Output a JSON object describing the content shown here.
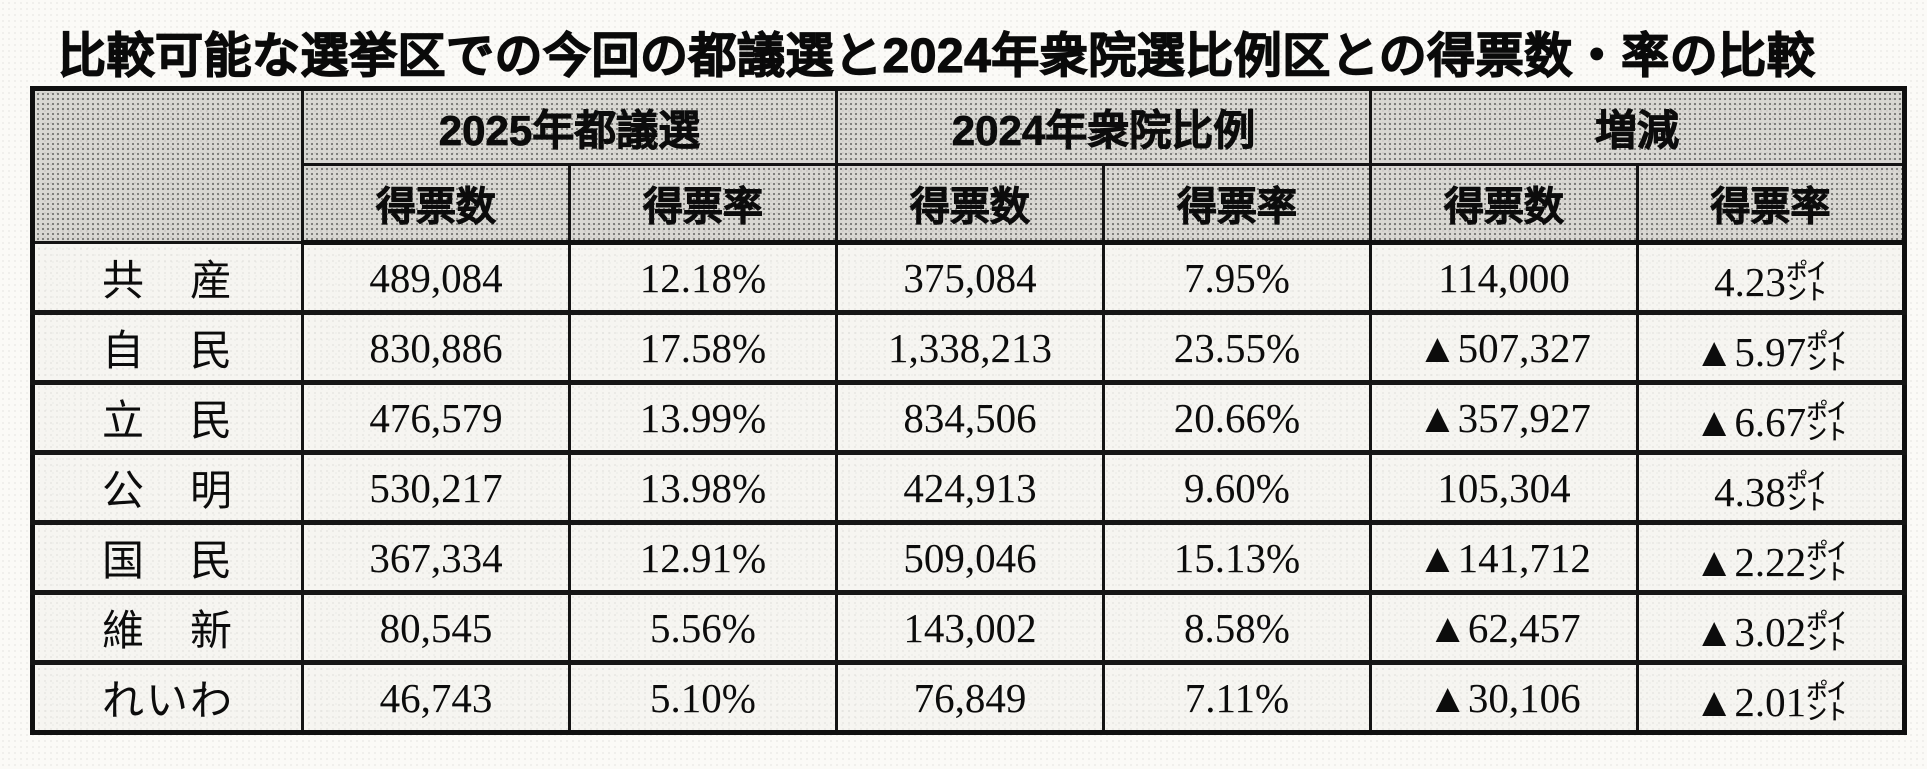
{
  "title": "比較可能な選挙区での今回の都議選と2024年衆院選比例区との得票数・率の比較",
  "table": {
    "group_headers": [
      "2025年都議選",
      "2024年衆院比例",
      "増減"
    ],
    "sub_headers": [
      "得票数",
      "得票率",
      "得票数",
      "得票率",
      "得票数",
      "得票率"
    ],
    "rows": [
      {
        "party": "共　産",
        "cells": [
          "489,084",
          "12.18%",
          "375,084",
          "7.95%",
          "114,000",
          "4.23㌽"
        ]
      },
      {
        "party": "自　民",
        "cells": [
          "830,886",
          "17.58%",
          "1,338,213",
          "23.55%",
          "▲507,327",
          "▲5.97㌽"
        ]
      },
      {
        "party": "立　民",
        "cells": [
          "476,579",
          "13.99%",
          "834,506",
          "20.66%",
          "▲357,927",
          "▲6.67㌽"
        ]
      },
      {
        "party": "公　明",
        "cells": [
          "530,217",
          "13.98%",
          "424,913",
          "9.60%",
          "105,304",
          "4.38㌽"
        ]
      },
      {
        "party": "国　民",
        "cells": [
          "367,334",
          "12.91%",
          "509,046",
          "15.13%",
          "▲141,712",
          "▲2.22㌽"
        ]
      },
      {
        "party": "維　新",
        "cells": [
          "80,545",
          "5.56%",
          "143,002",
          "8.58%",
          "▲62,457",
          "▲3.02㌽"
        ]
      },
      {
        "party": "れいわ",
        "cells": [
          "46,743",
          "5.10%",
          "76,849",
          "7.11%",
          "▲30,106",
          "▲2.01㌽"
        ]
      }
    ],
    "decrease_marker": "▲",
    "unit_points": "㌽"
  }
}
